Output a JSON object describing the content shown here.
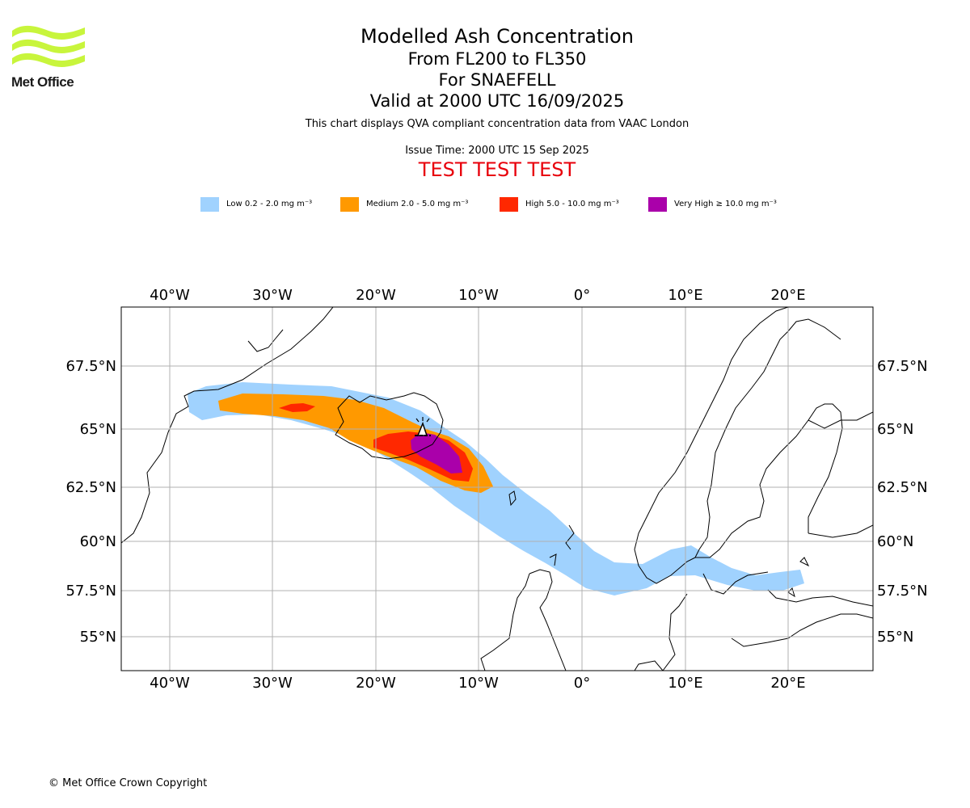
{
  "logo": {
    "name": "Met Office"
  },
  "title": {
    "line1": "Modelled Ash Concentration",
    "line2": "From FL200 to FL350",
    "line3": "For SNAEFELL",
    "line4": "Valid at 2000 UTC 16/09/2025"
  },
  "subtitle": "This chart displays QVA compliant concentration data from VAAC London",
  "issue_time": "Issue Time: 2000 UTC 15 Sep 2025",
  "test_banner": "TEST TEST TEST",
  "legend": [
    {
      "label": "Low 0.2 - 2.0 mg m⁻³",
      "color": "#a0d2fe"
    },
    {
      "label": "Medium 2.0 - 5.0 mg m⁻³",
      "color": "#ff9900"
    },
    {
      "label": "High 5.0 - 10.0 mg m⁻³",
      "color": "#ff2800"
    },
    {
      "label": "Very High ≥ 10.0 mg m⁻³",
      "color": "#aa00aa"
    }
  ],
  "map": {
    "lon_ticks": [
      "40°W",
      "30°W",
      "20°W",
      "10°W",
      "0°",
      "10°E",
      "20°E"
    ],
    "lat_ticks": [
      "67.5°N",
      "65°N",
      "62.5°N",
      "60°N",
      "57.5°N",
      "55°N"
    ],
    "grid": true,
    "volcano_marker": "volcano-symbol"
  },
  "copyright": "© Met Office Crown Copyright"
}
